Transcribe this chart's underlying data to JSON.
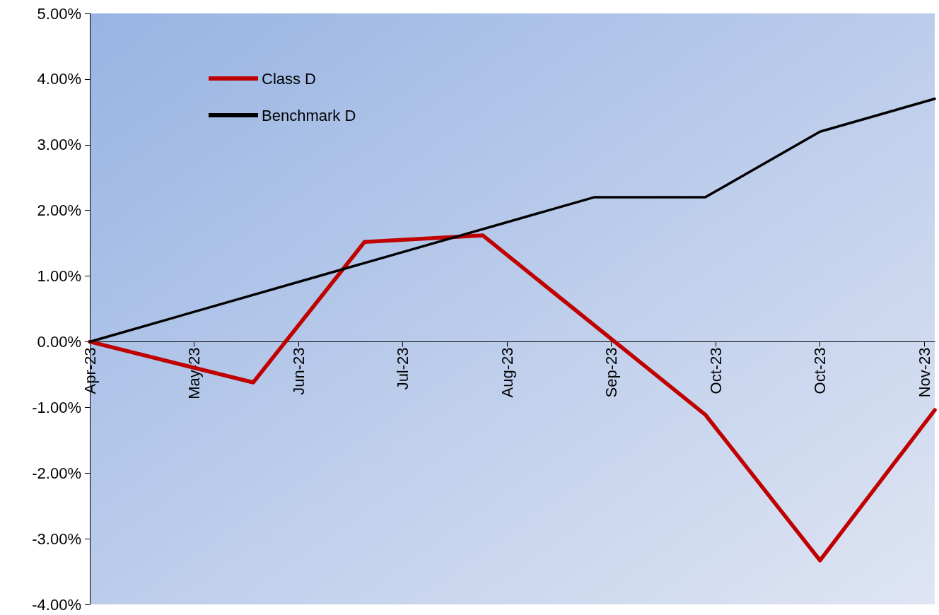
{
  "chart_data": {
    "type": "line",
    "series": [
      {
        "name": "Class D",
        "color": "#c00000",
        "x": [
          "2023-04-04",
          "2023-05-21",
          "2023-06-22",
          "2023-07-26",
          "2023-09-28",
          "2023-10-31",
          "2023-12-03"
        ],
        "values": [
          0,
          -0.62,
          1.52,
          1.62,
          -1.11,
          -3.33,
          -1.04
        ]
      },
      {
        "name": "Benchmark D",
        "color": "#000000",
        "x": [
          "2023-04-04",
          "2023-08-27",
          "2023-09-28",
          "2023-10-31",
          "2023-12-03"
        ],
        "values": [
          0,
          2.2,
          2.2,
          3.2,
          3.7
        ]
      }
    ],
    "xlim": [
      "2023-04-04",
      "2023-12-03"
    ],
    "xticks": [
      {
        "value": "2023-04-04",
        "label": "Apr-23"
      },
      {
        "value": "2023-05-04",
        "label": "May-23"
      },
      {
        "value": "2023-06-03",
        "label": "Jun-23"
      },
      {
        "value": "2023-07-03",
        "label": "Jul-23"
      },
      {
        "value": "2023-08-02",
        "label": "Aug-23"
      },
      {
        "value": "2023-09-01",
        "label": "Sep-23"
      },
      {
        "value": "2023-10-01",
        "label": "Oct-23"
      },
      {
        "value": "2023-10-31",
        "label": "Oct-23"
      },
      {
        "value": "2023-11-30",
        "label": "Nov-23"
      }
    ],
    "ylim": [
      -4,
      5
    ],
    "yticks": [
      {
        "value": -4,
        "label": "-4.00%"
      },
      {
        "value": -3,
        "label": "-3.00%"
      },
      {
        "value": -2,
        "label": "-2.00%"
      },
      {
        "value": -1,
        "label": "-1.00%"
      },
      {
        "value": 0,
        "label": "0.00%"
      },
      {
        "value": 1,
        "label": "1.00%"
      },
      {
        "value": 2,
        "label": "2.00%"
      },
      {
        "value": 3,
        "label": "3.00%"
      },
      {
        "value": 4,
        "label": "4.00%"
      },
      {
        "value": 5,
        "label": "5.00%"
      }
    ],
    "grid": false,
    "legend": "top left",
    "marker": "none",
    "line_style": "solid"
  }
}
